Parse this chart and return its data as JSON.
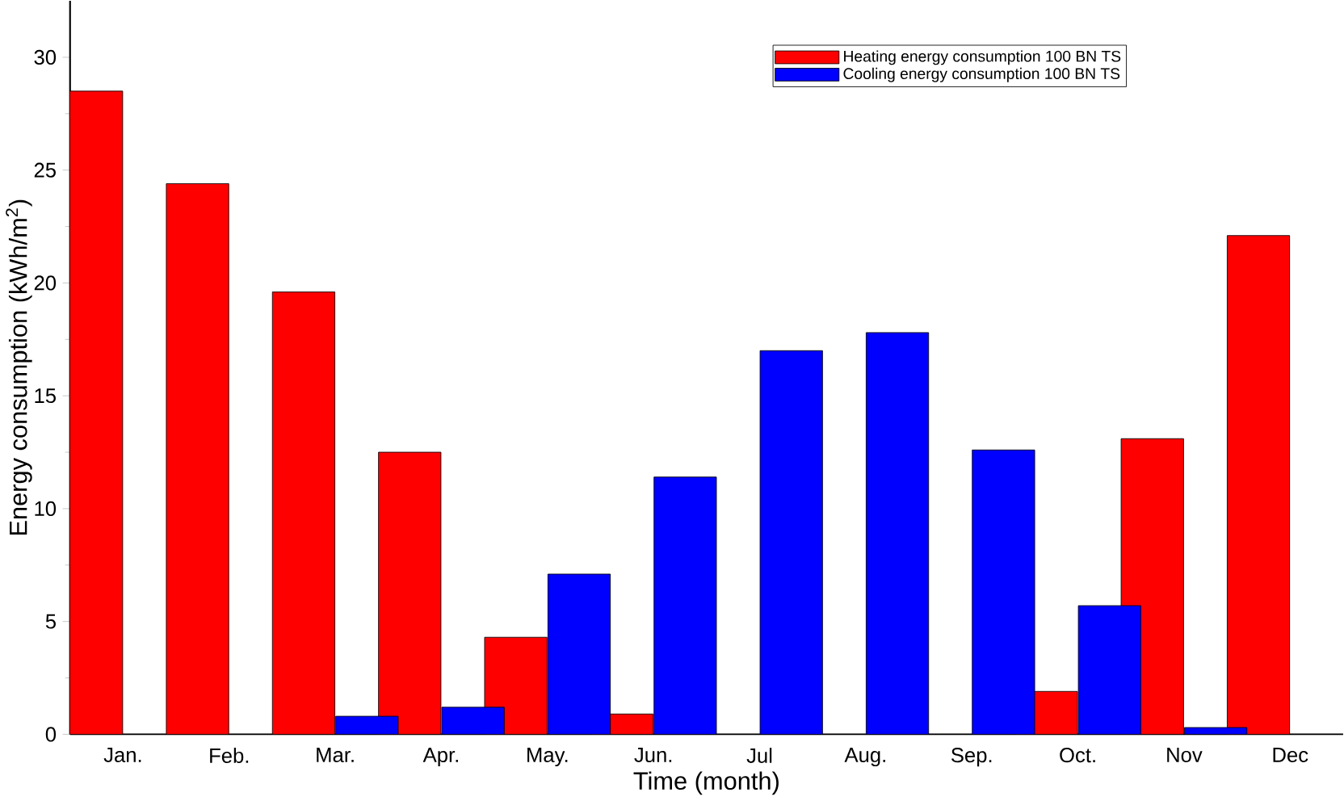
{
  "chart_data": {
    "type": "bar",
    "xlabel": "Time (month)",
    "ylabel": "Energy consumption (kWh/m$^{2}$)",
    "categories": [
      "Jan.",
      "Feb.",
      "Mar.",
      "Apr.",
      "May.",
      "Jun.",
      "Jul",
      "Aug.",
      "Sep.",
      "Oct.",
      "Nov",
      "Dec"
    ],
    "series": [
      {
        "name": "Heating energy consumption 100 BN TS",
        "color": "#ff0000",
        "values": [
          28.5,
          24.4,
          19.6,
          12.5,
          4.3,
          0.9,
          0,
          0,
          0,
          1.9,
          13.1,
          22.1
        ]
      },
      {
        "name": "Cooling energy consumption 100 BN TS",
        "color": "#0000ff",
        "values": [
          0,
          0,
          0.8,
          1.2,
          7.1,
          11.4,
          17.0,
          17.8,
          12.6,
          5.7,
          0.3,
          0
        ]
      }
    ],
    "ylim": [
      0,
      32.5
    ],
    "yticks": [
      0,
      5,
      10,
      15,
      20,
      25,
      30
    ],
    "legend": "top right",
    "grid": false
  }
}
